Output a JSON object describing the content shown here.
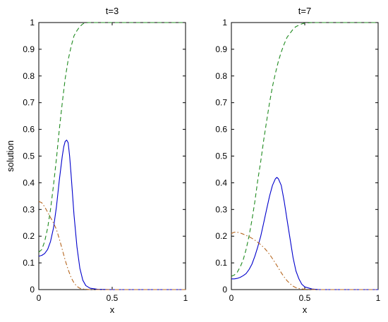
{
  "chart_data": [
    {
      "type": "line",
      "title": "t=3",
      "xlabel": "x",
      "ylabel": "solution",
      "xlim": [
        0,
        1
      ],
      "ylim": [
        0,
        1
      ],
      "xticks": [
        "0",
        "0.5",
        "1"
      ],
      "yticks": [
        "0",
        "0.1",
        "0.2",
        "0.3",
        "0.4",
        "0.5",
        "0.6",
        "0.7",
        "0.8",
        "0.9",
        "1"
      ],
      "grid": false,
      "series": [
        {
          "style": "dashed",
          "color": "#1f8a1f",
          "x": [
            0,
            0.02,
            0.04,
            0.06,
            0.08,
            0.1,
            0.12,
            0.14,
            0.16,
            0.18,
            0.2,
            0.22,
            0.24,
            0.26,
            0.28,
            0.3,
            0.32,
            0.34,
            0.4,
            0.5,
            0.6,
            0.7,
            0.8,
            0.9,
            1
          ],
          "y": [
            0.14,
            0.15,
            0.18,
            0.23,
            0.3,
            0.39,
            0.49,
            0.6,
            0.7,
            0.79,
            0.86,
            0.91,
            0.95,
            0.97,
            0.985,
            0.995,
            0.999,
            1,
            1,
            1,
            1,
            1,
            1,
            1,
            1
          ]
        },
        {
          "style": "solid",
          "color": "#0000cc",
          "x": [
            0,
            0.02,
            0.04,
            0.06,
            0.08,
            0.1,
            0.12,
            0.14,
            0.16,
            0.17,
            0.18,
            0.19,
            0.2,
            0.21,
            0.22,
            0.24,
            0.26,
            0.28,
            0.3,
            0.32,
            0.35,
            0.4,
            0.5,
            0.6,
            0.7,
            0.8,
            0.9,
            1
          ],
          "y": [
            0.125,
            0.128,
            0.135,
            0.15,
            0.18,
            0.23,
            0.31,
            0.41,
            0.5,
            0.535,
            0.555,
            0.56,
            0.55,
            0.5,
            0.43,
            0.28,
            0.16,
            0.08,
            0.035,
            0.015,
            0.005,
            0.001,
            0,
            0,
            0,
            0,
            0,
            0
          ]
        },
        {
          "style": "dashdot",
          "color": "#b5651d",
          "x": [
            0,
            0.02,
            0.04,
            0.06,
            0.08,
            0.1,
            0.12,
            0.14,
            0.16,
            0.18,
            0.2,
            0.22,
            0.24,
            0.26,
            0.28,
            0.3,
            0.35,
            0.4,
            0.5,
            0.6,
            0.7,
            0.8,
            0.9,
            1
          ],
          "y": [
            0.33,
            0.325,
            0.31,
            0.29,
            0.27,
            0.25,
            0.225,
            0.19,
            0.15,
            0.11,
            0.075,
            0.045,
            0.025,
            0.012,
            0.005,
            0.002,
            0,
            0,
            0,
            0,
            0,
            0,
            0,
            0
          ]
        }
      ]
    },
    {
      "type": "line",
      "title": "t=7",
      "xlabel": "x",
      "ylabel": "",
      "xlim": [
        0,
        1
      ],
      "ylim": [
        0,
        1
      ],
      "xticks": [
        "0",
        "0.5",
        "1"
      ],
      "yticks": [
        "0",
        "0.1",
        "0.2",
        "0.3",
        "0.4",
        "0.5",
        "0.6",
        "0.7",
        "0.8",
        "0.9",
        "1"
      ],
      "grid": false,
      "series": [
        {
          "style": "dashed",
          "color": "#1f8a1f",
          "x": [
            0,
            0.02,
            0.04,
            0.06,
            0.08,
            0.1,
            0.12,
            0.14,
            0.16,
            0.18,
            0.2,
            0.22,
            0.24,
            0.26,
            0.28,
            0.3,
            0.32,
            0.34,
            0.36,
            0.38,
            0.4,
            0.42,
            0.44,
            0.46,
            0.48,
            0.5,
            0.55,
            0.6,
            0.7,
            0.8,
            0.9,
            1
          ],
          "y": [
            0.05,
            0.055,
            0.065,
            0.085,
            0.11,
            0.15,
            0.2,
            0.26,
            0.33,
            0.41,
            0.48,
            0.56,
            0.63,
            0.7,
            0.76,
            0.81,
            0.855,
            0.89,
            0.92,
            0.945,
            0.96,
            0.975,
            0.985,
            0.99,
            0.995,
            0.998,
            1,
            1,
            1,
            1,
            1,
            1
          ]
        },
        {
          "style": "solid",
          "color": "#0000cc",
          "x": [
            0,
            0.02,
            0.04,
            0.06,
            0.08,
            0.1,
            0.12,
            0.14,
            0.16,
            0.18,
            0.2,
            0.22,
            0.24,
            0.26,
            0.28,
            0.3,
            0.31,
            0.32,
            0.34,
            0.36,
            0.38,
            0.4,
            0.42,
            0.44,
            0.46,
            0.48,
            0.5,
            0.55,
            0.6,
            0.7,
            0.8,
            0.9,
            1
          ],
          "y": [
            0.04,
            0.04,
            0.042,
            0.046,
            0.052,
            0.06,
            0.075,
            0.095,
            0.125,
            0.16,
            0.2,
            0.25,
            0.3,
            0.35,
            0.39,
            0.415,
            0.42,
            0.415,
            0.39,
            0.33,
            0.26,
            0.19,
            0.12,
            0.07,
            0.04,
            0.02,
            0.01,
            0.002,
            0,
            0,
            0,
            0,
            0
          ]
        },
        {
          "style": "dashdot",
          "color": "#b5651d",
          "x": [
            0,
            0.02,
            0.04,
            0.06,
            0.08,
            0.1,
            0.12,
            0.14,
            0.16,
            0.18,
            0.2,
            0.22,
            0.24,
            0.26,
            0.28,
            0.3,
            0.32,
            0.34,
            0.36,
            0.38,
            0.4,
            0.42,
            0.44,
            0.46,
            0.5,
            0.6,
            0.7,
            0.8,
            0.9,
            1
          ],
          "y": [
            0.21,
            0.215,
            0.215,
            0.212,
            0.208,
            0.203,
            0.198,
            0.192,
            0.185,
            0.177,
            0.168,
            0.158,
            0.146,
            0.132,
            0.116,
            0.099,
            0.081,
            0.063,
            0.047,
            0.033,
            0.022,
            0.013,
            0.007,
            0.004,
            0.001,
            0,
            0,
            0,
            0,
            0
          ]
        }
      ]
    }
  ]
}
